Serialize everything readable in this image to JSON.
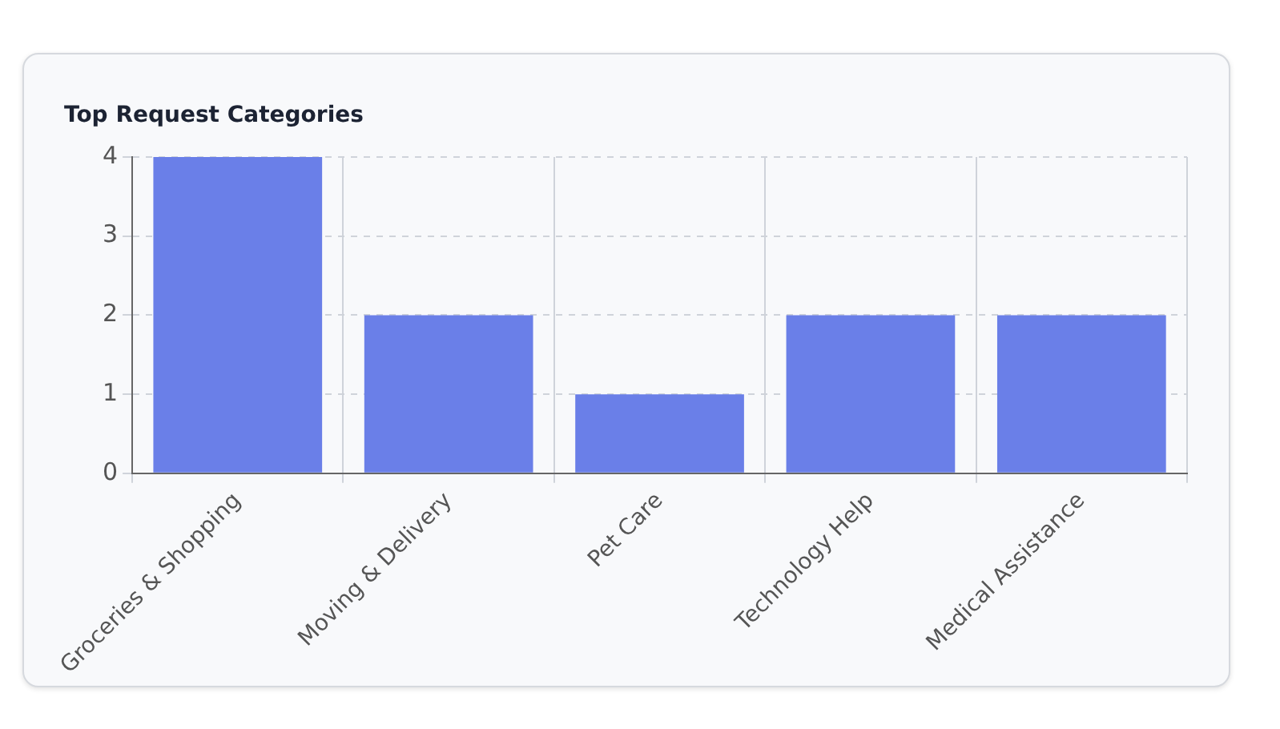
{
  "chart_data": {
    "type": "bar",
    "title": "Top Request Categories",
    "categories": [
      "Groceries & Shopping",
      "Moving & Delivery",
      "Pet Care",
      "Technology Help",
      "Medical Assistance"
    ],
    "values": [
      4,
      2,
      1,
      2,
      2
    ],
    "color": "#6a7fe8",
    "ylim": [
      0,
      4
    ],
    "yticks": [
      0,
      1,
      2,
      3,
      4
    ],
    "grid": true,
    "legend": false
  }
}
